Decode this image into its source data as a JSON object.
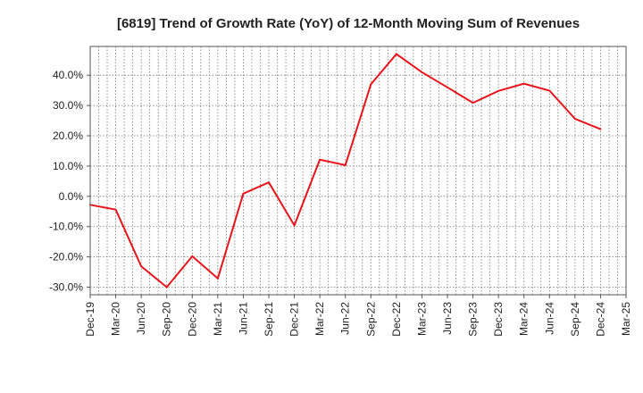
{
  "chart_data": {
    "type": "line",
    "title": "[6819]  Trend of Growth Rate (YoY) of 12-Month Moving Sum of Revenues",
    "xlabel": "",
    "ylabel": "",
    "x_tick_labels": [
      "Dec-19",
      "Mar-20",
      "Jun-20",
      "Sep-20",
      "Dec-20",
      "Mar-21",
      "Jun-21",
      "Sep-21",
      "Dec-21",
      "Mar-22",
      "Jun-22",
      "Sep-22",
      "Dec-22",
      "Mar-23",
      "Jun-23",
      "Sep-23",
      "Dec-23",
      "Mar-24",
      "Jun-24",
      "Sep-24",
      "Dec-24",
      "Mar-25"
    ],
    "y_tick_labels": [
      "-30.0%",
      "-20.0%",
      "-10.0%",
      "0.0%",
      "10.0%",
      "20.0%",
      "30.0%",
      "40.0%"
    ],
    "y_ticks": [
      -30,
      -20,
      -10,
      0,
      10,
      20,
      30,
      40
    ],
    "ylim": [
      -32.5,
      49.5
    ],
    "grid": true,
    "series": [
      {
        "color": "#e8141c",
        "x": [
          "Dec-19",
          "Mar-20",
          "Jun-20",
          "Sep-20",
          "Dec-20",
          "Mar-21",
          "Jun-21",
          "Sep-21",
          "Dec-21",
          "Mar-22",
          "Jun-22",
          "Sep-22",
          "Dec-22",
          "Mar-23",
          "Jun-23",
          "Sep-23",
          "Dec-23",
          "Mar-24",
          "Jun-24",
          "Sep-24",
          "Dec-24"
        ],
        "values": [
          -2.8,
          -4.4,
          -23.1,
          -30.0,
          -19.8,
          -27.1,
          0.9,
          4.6,
          -9.6,
          12.1,
          10.3,
          37.0,
          47.0,
          41.0,
          36.0,
          30.9,
          34.8,
          37.2,
          34.9,
          25.6,
          22.2
        ]
      }
    ]
  }
}
